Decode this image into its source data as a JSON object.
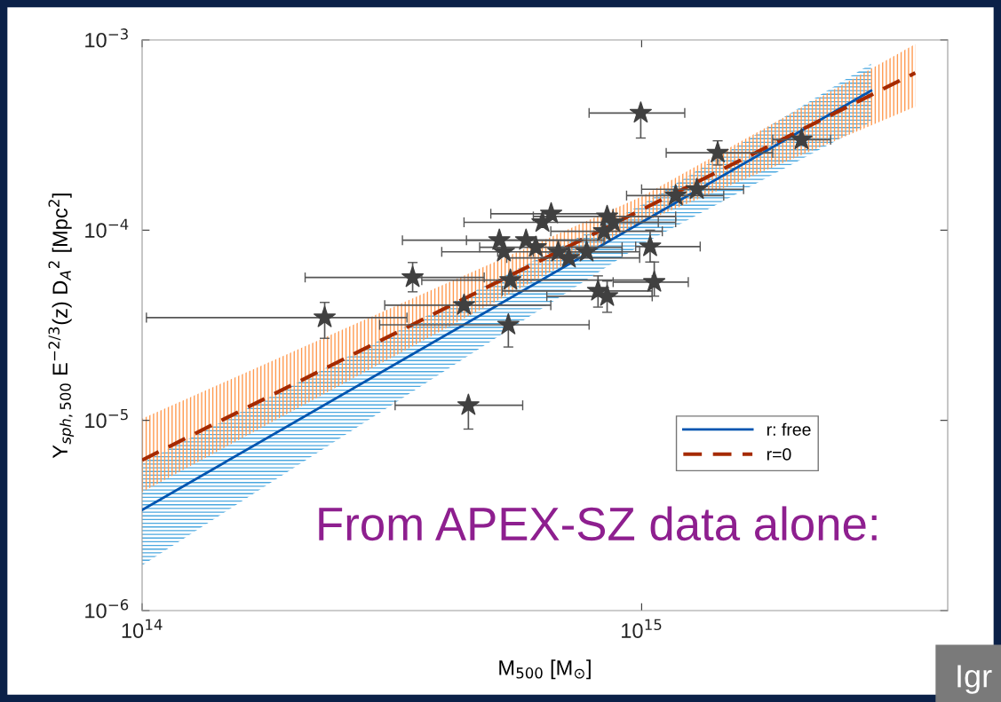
{
  "chart_data": {
    "type": "scatter",
    "xlabel": "M$_{500}$ [M$_{⊙}$]",
    "ylabel": "Y$_{sph,500}$ E$^{−2/3}$(z) D$_{A}$$^{2}$ [Mpc$^{2}$]",
    "log": "xy",
    "xlim": [
      100000000000000.0,
      4100000000000000.0
    ],
    "ylim": [
      1e-06,
      0.001
    ],
    "xticks": [
      {
        "value": 100000000000000.0,
        "label": "10$^{14}$"
      },
      {
        "value": 1000000000000000.0,
        "label": "10$^{15}$"
      }
    ],
    "yticks": [
      {
        "value": 1e-06,
        "label": "10$^{−6}$"
      },
      {
        "value": 1e-05,
        "label": "10$^{−5}$"
      },
      {
        "value": 0.0001,
        "label": "10$^{−4}$"
      },
      {
        "value": 0.001,
        "label": "10$^{−3}$"
      }
    ],
    "grid": false,
    "legend": "bottom right",
    "series": [
      {
        "type": "line",
        "marker": "none",
        "name": "r: free",
        "color": "#0055b0",
        "line_style": "solid",
        "x": [
          100000000000000.0,
          1000000000000000.0,
          2880000000000000.0
        ],
        "values": [
          3.38e-06,
          0.00011,
          0.000541
        ],
        "lower": [
          1.73e-06,
          8.4e-05,
          0.00037
        ],
        "upper": [
          5.98e-06,
          0.000136,
          0.00075
        ]
      },
      {
        "type": "line",
        "marker": "none",
        "name": "r=0",
        "color": "#a52a00",
        "line_style": "dashed",
        "x": [
          100000000000000.0,
          1000000000000000.0,
          3530000000000000.0
        ],
        "values": [
          6.18e-06,
          0.000128,
          0.000671
        ],
        "lower": [
          4.2e-06,
          0.000109,
          0.000446
        ],
        "upper": [
          1.02e-05,
          0.00015,
          0.00095
        ]
      },
      {
        "marker": "star",
        "color": "#404040",
        "x": [
          232000000000000.0,
          348000000000000.0,
          441000000000000.0,
          546000000000000.0,
          519000000000000.0,
          530000000000000.0,
          587000000000000.0,
          614000000000000.0,
          633000000000000.0,
          659000000000000.0,
          681000000000000.0,
          715000000000000.0,
          776000000000000.0,
          853000000000000.0,
          841000000000000.0,
          877000000000000.0,
          818000000000000.0,
          853000000000000.0,
          1040000000000000.0,
          1060000000000000.0,
          1420000000000000.0,
          1170000000000000.0,
          1290000000000000.0,
          2090000000000000.0
        ],
        "values": [
          3.47e-05,
          5.64e-05,
          4.03e-05,
          5.46e-05,
          8.85e-05,
          7.69e-05,
          8.85e-05,
          8.13e-05,
          0.00011,
          0.000122,
          7.69e-05,
          7.14e-05,
          7.69e-05,
          0.000118,
          9.86e-05,
          0.00011,
          4.79e-05,
          4.49e-05,
          8.2e-05,
          5.33e-05,
          0.000255,
          0.000152,
          0.000164,
          0.000299
        ],
        "errors": [
          [
            2.7e-05,
            4.17e-05
          ],
          [
            4.74e-05,
            6.76e-05
          ],
          null,
          null,
          null,
          null,
          null,
          null,
          null,
          null,
          null,
          null,
          null,
          null,
          null,
          null,
          [
            3.94e-05,
            5.75e-05
          ],
          [
            3.7e-05,
            5.4e-05
          ],
          [
            6.8e-05,
            0.0001
          ],
          [
            4.5e-05,
            6.8e-05
          ],
          [
            0.00022,
            0.000295
          ],
          null,
          null,
          null
        ],
        "xerrors": [
          [
            102000000000000.0,
            339000000000000.0
          ],
          [
            212000000000000.0,
            484000000000000.0
          ],
          [
            306000000000000.0,
            658000000000000.0
          ],
          [
            363000000000000.0,
            1050000000000000.0
          ],
          [
            332000000000000.0,
            841000000000000.0
          ],
          [
            398000000000000.0,
            530000000000000.0
          ],
          [
            446000000000000.0,
            776000000000000.0
          ],
          [
            474000000000000.0,
            914000000000000.0
          ],
          [
            441000000000000.0,
            1080000000000000.0
          ],
          [
            499000000000000.0,
            877000000000000.0
          ],
          [
            515000000000000.0,
            914000000000000.0
          ],
          [
            537000000000000.0,
            991000000000000.0
          ],
          [
            607000000000000.0,
            991000000000000.0
          ],
          [
            607000000000000.0,
            1170000000000000.0
          ],
          [
            658000000000000.0,
            1100000000000000.0
          ],
          [
            877000000000000.0,
            1170000000000000.0
          ],
          [
            526000000000000.0,
            1050000000000000.0
          ],
          [
            646000000000000.0,
            1050000000000000.0
          ],
          [
            973000000000000.0,
            1310000000000000.0
          ],
          [
            877000000000000.0,
            1240000000000000.0
          ],
          [
            1120000000000000.0,
            1830000000000000.0
          ],
          [
            933000000000000.0,
            1460000000000000.0
          ],
          [
            1000000000000000.0,
            1600000000000000.0
          ],
          [
            1830000000000000.0,
            2390000000000000.0
          ]
        ]
      },
      {
        "marker": "star",
        "color": "#404040",
        "x": [
          450000000000000.0,
          541000000000000.0,
          996000000000000.0
        ],
        "values": [
          1.2e-05,
          3.18e-05,
          0.000413
        ],
        "errors": [
          [
            9e-06,
            1.2e-05
          ],
          [
            2.43e-05,
            3.18e-05
          ],
          [
            0.000305,
            0.000413
          ]
        ],
        "xerrors": [
          [
            321000000000000.0,
            578000000000000.0
          ],
          [
            299000000000000.0,
            785000000000000.0
          ],
          [
            785000000000000.0,
            1220000000000000.0
          ]
        ]
      }
    ],
    "annotations": [
      "From APEX-SZ data alone:",
      "Igr"
    ]
  }
}
